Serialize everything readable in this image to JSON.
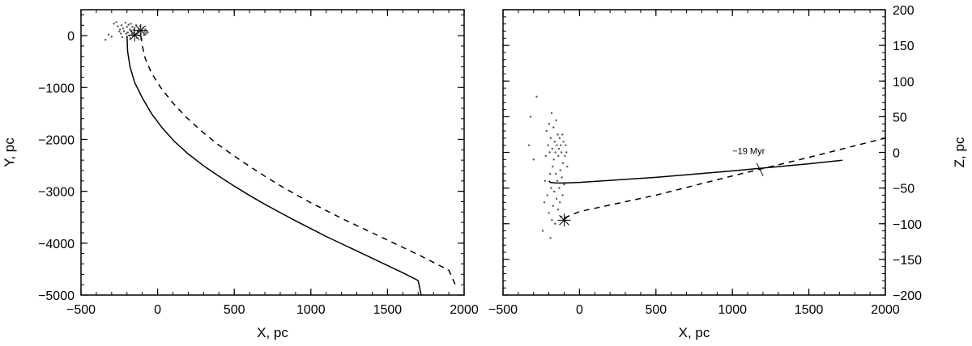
{
  "chart_data": [
    {
      "type": "line",
      "title": "",
      "xlabel": "X, pc",
      "ylabel": "Y, pc",
      "xlim": [
        -500,
        2000
      ],
      "ylim": [
        -5000,
        500
      ],
      "xticks": [
        -500,
        0,
        500,
        1000,
        1500,
        2000
      ],
      "yticks": [
        -5000,
        -4000,
        -3000,
        -2000,
        -1000,
        0
      ],
      "xtick_labels": [
        "−500",
        "0",
        "500",
        "1000",
        "1500",
        "2000"
      ],
      "ytick_labels": [
        "−5000",
        "−4000",
        "−3000",
        "−2000",
        "−1000",
        "0"
      ],
      "y_axis_side": "left",
      "grid": false,
      "series": [
        {
          "style": "solid",
          "x": [
            -200,
            -196,
            -180,
            -150,
            -100,
            -40,
            30,
            110,
            200,
            300,
            400,
            500,
            600,
            700,
            800,
            900,
            1000,
            1100,
            1200,
            1300,
            1400,
            1500,
            1600,
            1700,
            1720
          ],
          "y": [
            0,
            -300,
            -600,
            -900,
            -1200,
            -1500,
            -1780,
            -2040,
            -2280,
            -2510,
            -2710,
            -2900,
            -3080,
            -3250,
            -3410,
            -3570,
            -3720,
            -3870,
            -4010,
            -4150,
            -4290,
            -4430,
            -4570,
            -4720,
            -5000
          ]
        },
        {
          "style": "dashed",
          "x": [
            -110,
            -100,
            -80,
            -40,
            20,
            100,
            190,
            290,
            390,
            500,
            600,
            700,
            800,
            900,
            1000,
            1100,
            1200,
            1300,
            1400,
            1500,
            1600,
            1700,
            1800,
            1900,
            1950
          ],
          "y": [
            0,
            -200,
            -450,
            -720,
            -1000,
            -1300,
            -1580,
            -1850,
            -2090,
            -2320,
            -2520,
            -2710,
            -2890,
            -3060,
            -3220,
            -3370,
            -3520,
            -3660,
            -3800,
            -3940,
            -4080,
            -4220,
            -4370,
            -4520,
            -4850
          ]
        }
      ],
      "markers": [
        {
          "symbol": "asterisk",
          "x": -110,
          "y": 100
        },
        {
          "symbol": "asterisk",
          "x": -150,
          "y": 10
        }
      ],
      "scatter": {
        "symbol": "dot",
        "x": [
          -340,
          -320,
          -300,
          -285,
          -270,
          -260,
          -250,
          -245,
          -240,
          -235,
          -230,
          -225,
          -220,
          -210,
          -205,
          -200,
          -195,
          -190,
          -185,
          -180,
          -178,
          -175,
          -170,
          -168,
          -165,
          -160,
          -158,
          -155,
          -150,
          -145,
          -140,
          -135,
          -130,
          -125,
          -120,
          -115,
          -110,
          -105,
          -100,
          -95,
          -90,
          -85,
          -80,
          -75,
          -70,
          -65
        ],
        "y": [
          -80,
          20,
          -20,
          230,
          260,
          180,
          80,
          120,
          40,
          200,
          -30,
          140,
          90,
          250,
          40,
          170,
          60,
          210,
          0,
          120,
          -50,
          230,
          90,
          30,
          170,
          -10,
          110,
          60,
          150,
          20,
          200,
          -40,
          80,
          130,
          0,
          180,
          40,
          -60,
          100,
          150,
          10,
          70,
          120,
          40,
          90,
          60
        ]
      }
    },
    {
      "type": "line",
      "title": "",
      "xlabel": "X, pc",
      "ylabel": "Z, pc",
      "xlim": [
        -500,
        2000
      ],
      "ylim": [
        -200,
        200
      ],
      "xticks": [
        -500,
        0,
        500,
        1000,
        1500,
        2000
      ],
      "yticks": [
        -200,
        -150,
        -100,
        -50,
        0,
        50,
        100,
        150,
        200
      ],
      "xtick_labels": [
        "−500",
        "0",
        "500",
        "1000",
        "1500",
        "2000"
      ],
      "ytick_labels": [
        "−200",
        "−150",
        "−100",
        "−50",
        "0",
        "50",
        "100",
        "150",
        "200"
      ],
      "y_axis_side": "right",
      "grid": false,
      "series": [
        {
          "style": "solid",
          "x": [
            -200,
            -190,
            -150,
            -100,
            0,
            500,
            1000,
            1500,
            1720
          ],
          "y": [
            -40,
            -42,
            -43,
            -43,
            -42,
            -35,
            -26,
            -16,
            -11
          ]
        },
        {
          "style": "dashed",
          "x": [
            -100,
            0,
            500,
            1000,
            1500,
            2000
          ],
          "y": [
            -92,
            -83,
            -60,
            -33,
            -7,
            20
          ]
        }
      ],
      "markers": [
        {
          "symbol": "asterisk",
          "x": -100,
          "y": -95
        },
        {
          "symbol": "tick",
          "x": 1180,
          "y": -24
        }
      ],
      "annotations": [
        {
          "text": "−19 Myr",
          "x": 1000,
          "y": -2
        }
      ],
      "scatter": {
        "symbol": "dot",
        "x": [
          -330,
          -320,
          -300,
          -280,
          -240,
          -230,
          -225,
          -220,
          -215,
          -210,
          -205,
          -200,
          -198,
          -195,
          -192,
          -190,
          -188,
          -185,
          -182,
          -180,
          -178,
          -175,
          -172,
          -170,
          -168,
          -165,
          -162,
          -160,
          -158,
          -155,
          -152,
          -150,
          -148,
          -145,
          -142,
          -140,
          -138,
          -135,
          -132,
          -130,
          -128,
          -125,
          -122,
          -120,
          -118,
          -115,
          -112,
          -110,
          -108,
          -105,
          -100,
          -95,
          -90,
          -85,
          -80
        ],
        "y": [
          10,
          50,
          -10,
          78,
          -110,
          -70,
          -40,
          -5,
          30,
          -60,
          10,
          -85,
          40,
          0,
          -30,
          -120,
          20,
          -50,
          55,
          -95,
          5,
          -20,
          -75,
          35,
          -10,
          -55,
          15,
          -100,
          0,
          -30,
          45,
          -65,
          10,
          -40,
          25,
          -80,
          -5,
          5,
          -50,
          20,
          -70,
          -25,
          10,
          -90,
          0,
          -35,
          25,
          -60,
          -15,
          15,
          -45,
          -5,
          10,
          0,
          -20
        ]
      }
    }
  ]
}
